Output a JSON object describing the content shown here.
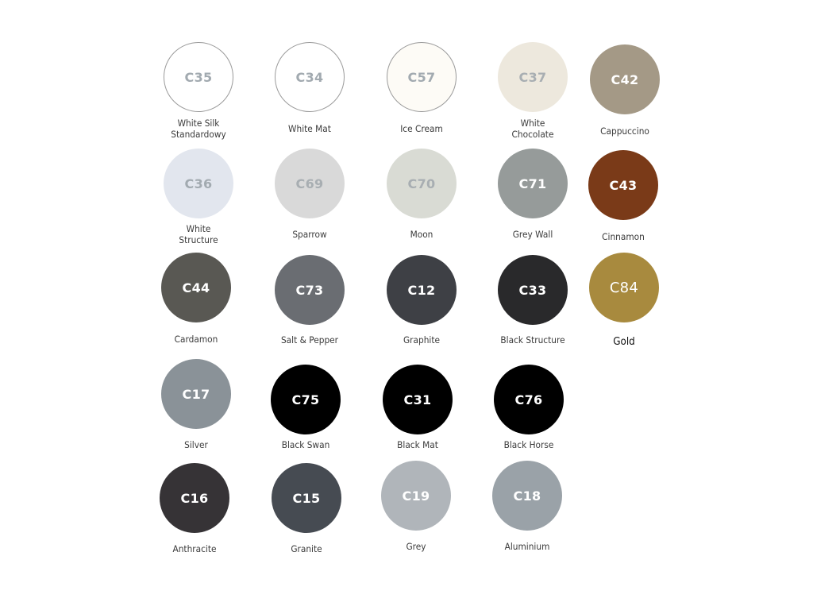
{
  "swatches": [
    {
      "code": "C35",
      "name": "White Silk\nStandardowy",
      "color": "#ffffff",
      "code_color": "#a2aab0",
      "border": "#9a9a9a"
    },
    {
      "code": "C34",
      "name": "White Mat",
      "color": "#ffffff",
      "code_color": "#a2aab0",
      "border": "#9a9a9a"
    },
    {
      "code": "C57",
      "name": "Ice Cream",
      "color": "#fdfbf6",
      "code_color": "#a2aab0",
      "border": "#9a9a9a"
    },
    {
      "code": "C37",
      "name": "White\nChocolate",
      "color": "#ede8dd",
      "code_color": "#a8aeb2"
    },
    {
      "code": "C42",
      "name": "Cappuccino",
      "color": "#a49986",
      "code_color": "#ffffff"
    },
    {
      "code": "C36",
      "name": "White\nStructure",
      "color": "#e2e6ee",
      "code_color": "#a2aab0"
    },
    {
      "code": "C69",
      "name": "Sparrow",
      "color": "#d9d9d9",
      "code_color": "#a8aeb2"
    },
    {
      "code": "C70",
      "name": "Moon",
      "color": "#d9dbd4",
      "code_color": "#a8aeb2"
    },
    {
      "code": "C71",
      "name": "Grey Wall",
      "color": "#969b9a",
      "code_color": "#ffffff"
    },
    {
      "code": "C43",
      "name": "Cinnamon",
      "color": "#7a3a18",
      "code_color": "#ffffff"
    },
    {
      "code": "C44",
      "name": "Cardamon",
      "color": "#595853",
      "code_color": "#ffffff"
    },
    {
      "code": "C73",
      "name": "Salt & Pepper",
      "color": "#6a6d72",
      "code_color": "#ffffff"
    },
    {
      "code": "C12",
      "name": "Graphite",
      "color": "#3e4045",
      "code_color": "#ffffff"
    },
    {
      "code": "C33",
      "name": "Black Structure",
      "color": "#29292b",
      "code_color": "#ffffff"
    },
    {
      "code": "C84",
      "name": "Gold",
      "color": "#a88a3e",
      "code_color": "#ffffff"
    },
    {
      "code": "C17",
      "name": "Silver",
      "color": "#8a9298",
      "code_color": "#ffffff"
    },
    {
      "code": "C75",
      "name": "Black Swan",
      "color": "#000000",
      "code_color": "#ffffff"
    },
    {
      "code": "C31",
      "name": "Black Mat",
      "color": "#000000",
      "code_color": "#ffffff"
    },
    {
      "code": "C76",
      "name": "Black Horse",
      "color": "#000000",
      "code_color": "#ffffff"
    },
    {
      "code": "C16",
      "name": "Anthracite",
      "color": "#363336",
      "code_color": "#ffffff"
    },
    {
      "code": "C15",
      "name": "Granite",
      "color": "#464b52",
      "code_color": "#ffffff"
    },
    {
      "code": "C19",
      "name": "Grey",
      "color": "#b0b5ba",
      "code_color": "#ffffff"
    },
    {
      "code": "C18",
      "name": "Aluminium",
      "color": "#9aa2a8",
      "code_color": "#ffffff"
    }
  ]
}
